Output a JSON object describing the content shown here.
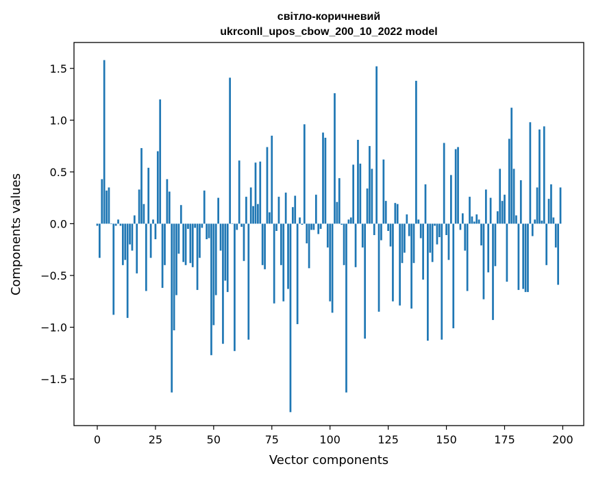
{
  "chart_data": {
    "type": "bar",
    "title_line1": "світло-коричневий",
    "title_line2": "ukrconll_upos_cbow_200_10_2022 model",
    "xlabel": "Vector components",
    "ylabel": "Components values",
    "xlim": [
      -10,
      209
    ],
    "ylim": [
      -1.95,
      1.75
    ],
    "x_ticks": [
      0,
      25,
      50,
      75,
      100,
      125,
      150,
      175,
      200
    ],
    "x_tick_labels": [
      "0",
      "25",
      "50",
      "75",
      "100",
      "125",
      "150",
      "175",
      "200"
    ],
    "y_ticks": [
      1.5,
      1.0,
      0.5,
      0.0,
      -0.5,
      -1.0,
      -1.5
    ],
    "y_tick_labels": [
      "1.5",
      "1.0",
      "0.5",
      "0.0",
      "−0.5",
      "−1.0",
      "−1.5"
    ],
    "grid": false,
    "color": "#1f77b4",
    "x": [
      0,
      1,
      2,
      3,
      4,
      5,
      6,
      7,
      8,
      9,
      10,
      11,
      12,
      13,
      14,
      15,
      16,
      17,
      18,
      19,
      20,
      21,
      22,
      23,
      24,
      25,
      26,
      27,
      28,
      29,
      30,
      31,
      32,
      33,
      34,
      35,
      36,
      37,
      38,
      39,
      40,
      41,
      42,
      43,
      44,
      45,
      46,
      47,
      48,
      49,
      50,
      51,
      52,
      53,
      54,
      55,
      56,
      57,
      58,
      59,
      60,
      61,
      62,
      63,
      64,
      65,
      66,
      67,
      68,
      69,
      70,
      71,
      72,
      73,
      74,
      75,
      76,
      77,
      78,
      79,
      80,
      81,
      82,
      83,
      84,
      85,
      86,
      87,
      88,
      89,
      90,
      91,
      92,
      93,
      94,
      95,
      96,
      97,
      98,
      99,
      100,
      101,
      102,
      103,
      104,
      105,
      106,
      107,
      108,
      109,
      110,
      111,
      112,
      113,
      114,
      115,
      116,
      117,
      118,
      119,
      120,
      121,
      122,
      123,
      124,
      125,
      126,
      127,
      128,
      129,
      130,
      131,
      132,
      133,
      134,
      135,
      136,
      137,
      138,
      139,
      140,
      141,
      142,
      143,
      144,
      145,
      146,
      147,
      148,
      149,
      150,
      151,
      152,
      153,
      154,
      155,
      156,
      157,
      158,
      159,
      160,
      161,
      162,
      163,
      164,
      165,
      166,
      167,
      168,
      169,
      170,
      171,
      172,
      173,
      174,
      175,
      176,
      177,
      178,
      179,
      180,
      181,
      182,
      183,
      184,
      185,
      186,
      187,
      188,
      189,
      190,
      191,
      192,
      193,
      194,
      195,
      196,
      197,
      198,
      199
    ],
    "values": [
      -0.02,
      -0.33,
      0.43,
      1.58,
      0.32,
      0.35,
      0.0,
      -0.88,
      -0.02,
      0.04,
      -0.02,
      -0.4,
      -0.35,
      -0.91,
      -0.2,
      -0.26,
      0.08,
      -0.48,
      0.33,
      0.73,
      0.19,
      -0.65,
      0.54,
      -0.33,
      0.04,
      -0.15,
      0.7,
      1.2,
      -0.62,
      -0.4,
      0.43,
      0.31,
      -1.63,
      -1.03,
      -0.69,
      -0.29,
      0.18,
      -0.37,
      -0.4,
      -0.05,
      -0.38,
      -0.42,
      -0.04,
      -0.64,
      -0.33,
      -0.04,
      0.32,
      -0.15,
      -0.14,
      -1.27,
      -0.98,
      -0.69,
      0.25,
      -0.26,
      -1.16,
      -0.55,
      -0.66,
      1.41,
      0.0,
      -1.23,
      -0.06,
      0.61,
      -0.03,
      -0.36,
      0.26,
      -1.12,
      0.35,
      0.17,
      0.59,
      0.19,
      0.6,
      -0.4,
      -0.44,
      0.74,
      0.11,
      0.85,
      -0.77,
      -0.07,
      0.26,
      -0.4,
      -0.75,
      0.3,
      -0.63,
      -1.82,
      0.16,
      0.27,
      -0.97,
      0.06,
      -0.01,
      0.96,
      -0.19,
      -0.43,
      -0.06,
      -0.06,
      0.28,
      -0.1,
      -0.05,
      0.88,
      0.83,
      -0.23,
      -0.75,
      -0.86,
      1.26,
      0.21,
      0.44,
      -0.01,
      -0.4,
      -1.63,
      0.04,
      0.06,
      0.57,
      -0.42,
      0.81,
      0.58,
      -0.23,
      -1.11,
      0.34,
      0.75,
      0.53,
      -0.11,
      1.52,
      -0.85,
      -0.16,
      0.62,
      0.22,
      -0.07,
      -0.22,
      -0.75,
      0.2,
      0.19,
      -0.79,
      -0.38,
      -0.28,
      0.09,
      -0.12,
      -0.82,
      -0.38,
      1.38,
      0.04,
      -0.14,
      -0.54,
      0.38,
      -1.13,
      -0.28,
      -0.37,
      -0.02,
      -0.2,
      -0.13,
      -1.12,
      0.78,
      -0.11,
      -0.35,
      0.47,
      -1.01,
      0.72,
      0.74,
      -0.06,
      0.1,
      -0.26,
      -0.65,
      0.26,
      0.07,
      0.02,
      0.09,
      0.04,
      -0.21,
      -0.73,
      0.33,
      -0.47,
      0.25,
      -0.93,
      -0.41,
      0.12,
      0.53,
      0.22,
      0.28,
      -0.56,
      0.82,
      1.12,
      0.53,
      0.08,
      -0.64,
      0.42,
      -0.63,
      -0.66,
      -0.66,
      0.98,
      -0.12,
      0.04,
      0.35,
      0.91,
      0.03,
      0.94,
      -0.4,
      0.24,
      0.38,
      0.06,
      -0.23,
      -0.59,
      0.35
    ]
  }
}
